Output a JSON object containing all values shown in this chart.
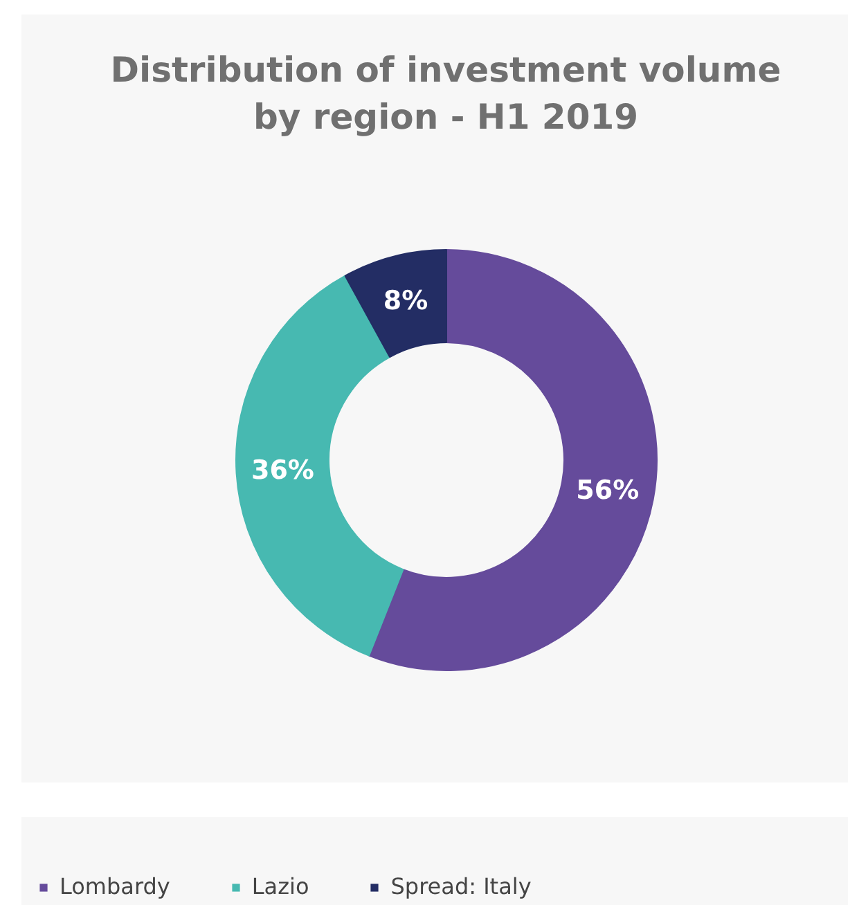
{
  "chart_data": {
    "type": "donut",
    "title": "Distribution of investment volume by region - H1 2019",
    "categories": [
      "Lombardy",
      "Lazio",
      "Spread: Italy"
    ],
    "values": [
      56,
      36,
      8
    ],
    "colors": [
      "#654b9b",
      "#47b9b1",
      "#232d64"
    ],
    "value_labels": [
      "56%",
      "36%",
      "8%"
    ],
    "legend": "bottom"
  }
}
